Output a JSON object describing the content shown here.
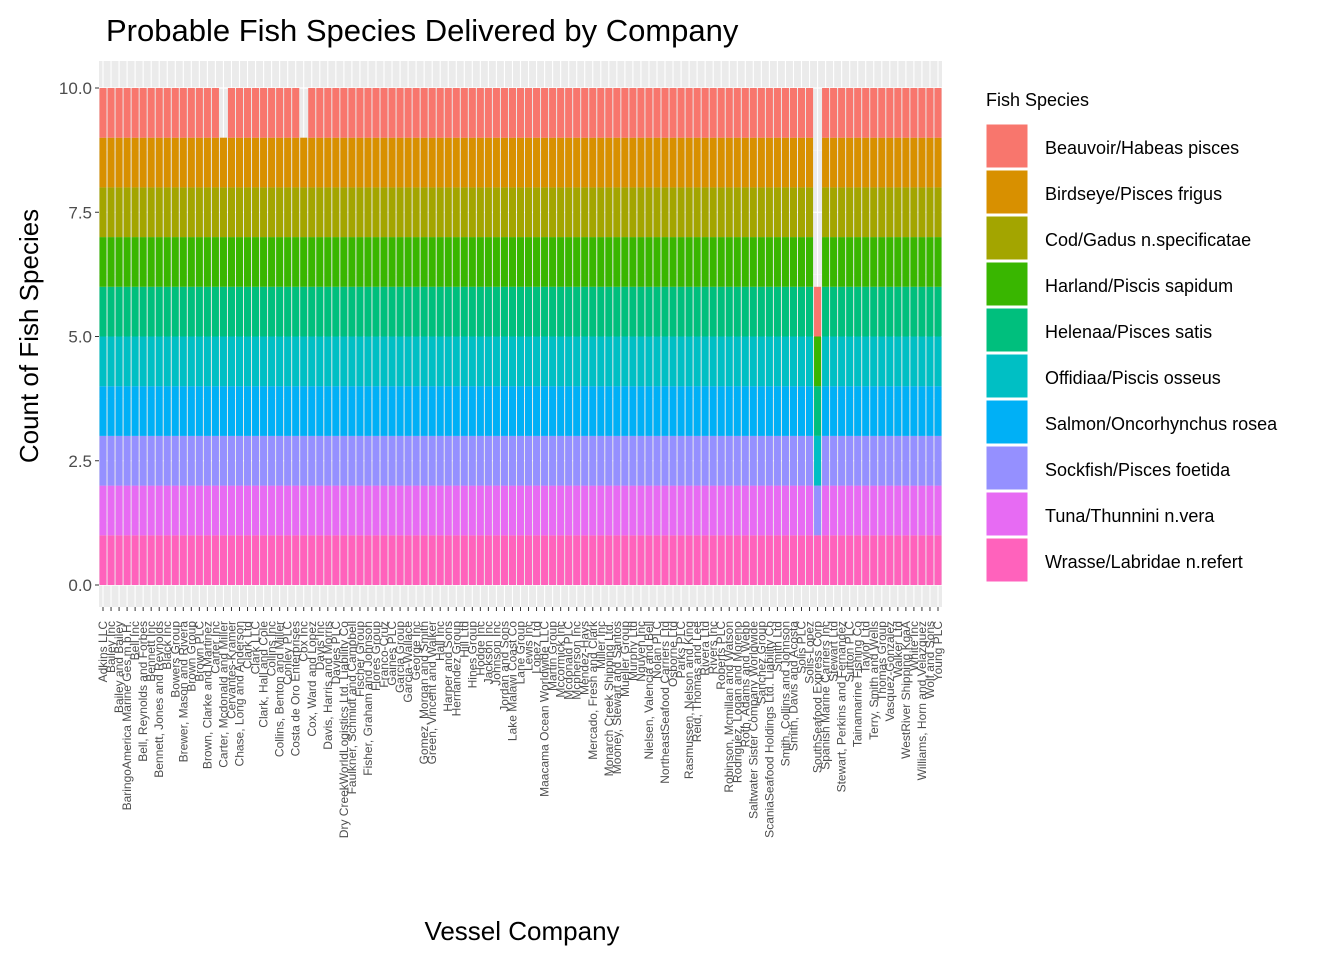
{
  "chart_data": {
    "type": "bar",
    "stacked": true,
    "title": "Probable Fish Species Delivered by Company",
    "xlabel": "Vessel Company",
    "ylabel": "Count of Fish Species",
    "ylim": [
      0,
      10.5
    ],
    "yticks": [
      "0.0",
      "2.5",
      "5.0",
      "7.5",
      "10.0"
    ],
    "ytick_values": [
      0,
      2.5,
      5,
      7.5,
      10
    ],
    "grid": true,
    "legend_position": "right",
    "legend_title": "Fish Species",
    "categories": [
      "Adkins LLC",
      "Bailey Inc",
      "Bailey and Bailey",
      "BaringoAmerica Marine Ges.m.b.H.",
      "Bell Inc",
      "Bell, Reynolds and Forbes",
      "Bennett Inc",
      "Bennett, Jones and Reynolds",
      "Black Inc",
      "Bowers Group",
      "Brewer, Mason and Rivera",
      "Brown Group",
      "Brown PLC",
      "Brown, Clarke and Martinez",
      "Carter Inc",
      "Carter, Mcdonald and Miller",
      "Cervantes-Kramer",
      "Chase, Long and Anderson",
      "Clark Ltd",
      "Clark LLC",
      "Clark, Hall and Cole",
      "Collins Inc",
      "Collins, Benton and Miller",
      "Conley PLC",
      "Costa de Oro Enterprises",
      "Cox Inc",
      "Cox, Ward and Lopez",
      "Davis Inc",
      "Davis, Harris and Morris",
      "Davies PLC",
      "Dry CreekWorldLogistics Ltd. Liability Co",
      "Faulkner, Schmidt and Campbell",
      "Fischer Group",
      "Fisher, Graham and Johnson",
      "Flores Group",
      "Franco-Cruz",
      "Gaines PLC",
      "Garcia Group",
      "Garcia-Wallace",
      "George Inc",
      "Gomez, Morgan and Smith",
      "Green, Vincent and Walker",
      "Hall Inc",
      "Harper and Sons",
      "Hernandez Group",
      "Hill Ltd",
      "Hines Group",
      "Hodge Inc",
      "Jackson Inc",
      "Johnson Inc",
      "Jordan and Sons",
      "Lake Malawi Coast Co",
      "Lane Group",
      "Lewis Inc",
      "Lopez Ltd",
      "Maacama Ocean Worldwide LLC",
      "Martin Group",
      "Mccormick Inc",
      "Mcdonald PLC",
      "Mcpherson Inc",
      "Mendez-Hays",
      "Mercado, Fresh and Clark",
      "Miller Inc",
      "Monarch Creek Shipping Ltd.",
      "Mooney, Stewart and Santos",
      "Mueller Group",
      "Murphy Ltd",
      "Nguyen Inc",
      "Nielsen, Valencia and Bell",
      "Nolan PLC",
      "NortheastSeafood Carriers Ltd",
      "Osborne Ltd",
      "Parks PLC",
      "Rasmussen, Nelson and King",
      "Reid, Thomas and Lee",
      "Rivera Ltd",
      "Rivers Inc",
      "Roberts PLC",
      "Robinson, Mcmillan and Watson",
      "Rodriguez, Logan and Moreno",
      "Roth, Adams and Webb",
      "Saltwater Sister Company Worldwide",
      "Sanchez Group",
      "ScaniaSeafood Holdings Ltd. Liability Co",
      "Smith Ltd",
      "Smith, Collins and Johnson",
      "Smith, Davis and Acosta",
      "Solis PLC",
      "Solis-Lopez",
      "SouthSeafood Express Corp",
      "Spanish Marine Carriers Inc",
      "Stewart Ltd",
      "Stewart, Perkins and Fernandez",
      "Sutton PLC",
      "Tainamarine Fishing Co",
      "Taylor Ltd",
      "Terry, Smith and Wells",
      "Thomas Group",
      "Vasquez-Gonzalez",
      "Walker Ltd",
      "WestRiver Shipping KgaA",
      "White Inc",
      "Williams, Horn and Velazquez",
      "Wolf and Sons",
      "Young PLC"
    ],
    "series": [
      {
        "name": "Beauvoir/Habeas pisces",
        "color": "#F8766D",
        "values": [
          1,
          1,
          1,
          1,
          1,
          1,
          1,
          1,
          1,
          1,
          1,
          1,
          1,
          1,
          1,
          0,
          1,
          1,
          1,
          1,
          1,
          1,
          1,
          1,
          1,
          0,
          1,
          1,
          1,
          1,
          1,
          1,
          1,
          1,
          1,
          1,
          1,
          1,
          1,
          1,
          1,
          1,
          1,
          1,
          1,
          1,
          1,
          1,
          1,
          1,
          1,
          1,
          1,
          1,
          1,
          1,
          1,
          1,
          1,
          1,
          1,
          1,
          1,
          1,
          1,
          1,
          1,
          1,
          1,
          1,
          1,
          1,
          1,
          1,
          1,
          1,
          1,
          1,
          1,
          1,
          1,
          1,
          1,
          1,
          1,
          1,
          1,
          1,
          1,
          1,
          1,
          1,
          1,
          1,
          1,
          1,
          1,
          1,
          1,
          1,
          1,
          1,
          1,
          1,
          1
        ]
      },
      {
        "name": "Birdseye/Pisces frigus",
        "color": "#D89000",
        "values": [
          1,
          1,
          1,
          1,
          1,
          1,
          1,
          1,
          1,
          1,
          1,
          1,
          1,
          1,
          1,
          1,
          1,
          1,
          1,
          1,
          1,
          1,
          1,
          1,
          1,
          1,
          1,
          1,
          1,
          1,
          1,
          1,
          1,
          1,
          1,
          1,
          1,
          1,
          1,
          1,
          1,
          1,
          1,
          1,
          1,
          1,
          1,
          1,
          1,
          1,
          1,
          1,
          1,
          1,
          1,
          1,
          1,
          1,
          1,
          1,
          1,
          1,
          1,
          1,
          1,
          1,
          1,
          1,
          1,
          1,
          1,
          1,
          1,
          1,
          1,
          1,
          1,
          1,
          1,
          1,
          1,
          1,
          1,
          1,
          1,
          1,
          1,
          1,
          1,
          0,
          1,
          1,
          1,
          1,
          1,
          1,
          1,
          1,
          1,
          1,
          1,
          1,
          1,
          1,
          1
        ]
      },
      {
        "name": "Cod/Gadus n.specificatae",
        "color": "#A3A500",
        "values": [
          1,
          1,
          1,
          1,
          1,
          1,
          1,
          1,
          1,
          1,
          1,
          1,
          1,
          1,
          1,
          1,
          1,
          1,
          1,
          1,
          1,
          1,
          1,
          1,
          1,
          1,
          1,
          1,
          1,
          1,
          1,
          1,
          1,
          1,
          1,
          1,
          1,
          1,
          1,
          1,
          1,
          1,
          1,
          1,
          1,
          1,
          1,
          1,
          1,
          1,
          1,
          1,
          1,
          1,
          1,
          1,
          1,
          1,
          1,
          1,
          1,
          1,
          1,
          1,
          1,
          1,
          1,
          1,
          1,
          1,
          1,
          1,
          1,
          1,
          1,
          1,
          1,
          1,
          1,
          1,
          1,
          1,
          1,
          1,
          1,
          1,
          1,
          1,
          1,
          0,
          1,
          1,
          1,
          1,
          1,
          1,
          1,
          1,
          1,
          1,
          1,
          1,
          1,
          1,
          1
        ]
      },
      {
        "name": "Harland/Piscis sapidum",
        "color": "#39B600",
        "values": [
          1,
          1,
          1,
          1,
          1,
          1,
          1,
          1,
          1,
          1,
          1,
          1,
          1,
          1,
          1,
          1,
          1,
          1,
          1,
          1,
          1,
          1,
          1,
          1,
          1,
          1,
          1,
          1,
          1,
          1,
          1,
          1,
          1,
          1,
          1,
          1,
          1,
          1,
          1,
          1,
          1,
          1,
          1,
          1,
          1,
          1,
          1,
          1,
          1,
          1,
          1,
          1,
          1,
          1,
          1,
          1,
          1,
          1,
          1,
          1,
          1,
          1,
          1,
          1,
          1,
          1,
          1,
          1,
          1,
          1,
          1,
          1,
          1,
          1,
          1,
          1,
          1,
          1,
          1,
          1,
          1,
          1,
          1,
          1,
          1,
          1,
          1,
          1,
          1,
          1,
          1,
          1,
          1,
          1,
          1,
          1,
          1,
          1,
          1,
          1,
          1,
          1,
          1,
          1,
          1
        ]
      },
      {
        "name": "Helenaa/Pisces satis",
        "color": "#00BF7D",
        "values": [
          1,
          1,
          1,
          1,
          1,
          1,
          1,
          1,
          1,
          1,
          1,
          1,
          1,
          1,
          1,
          1,
          1,
          1,
          1,
          1,
          1,
          1,
          1,
          1,
          1,
          1,
          1,
          1,
          1,
          1,
          1,
          1,
          1,
          1,
          1,
          1,
          1,
          1,
          1,
          1,
          1,
          1,
          1,
          1,
          1,
          1,
          1,
          1,
          1,
          1,
          1,
          1,
          1,
          1,
          1,
          1,
          1,
          1,
          1,
          1,
          1,
          1,
          1,
          1,
          1,
          1,
          1,
          1,
          1,
          1,
          1,
          1,
          1,
          1,
          1,
          1,
          1,
          1,
          1,
          1,
          1,
          1,
          1,
          1,
          1,
          1,
          1,
          1,
          1,
          1,
          1,
          1,
          1,
          1,
          1,
          1,
          1,
          1,
          1,
          1,
          1,
          1,
          1,
          1,
          1
        ]
      },
      {
        "name": "Offidiaa/Piscis osseus",
        "color": "#00BFC4",
        "values": [
          1,
          1,
          1,
          1,
          1,
          1,
          1,
          1,
          1,
          1,
          1,
          1,
          1,
          1,
          1,
          1,
          1,
          1,
          1,
          1,
          1,
          1,
          1,
          1,
          1,
          1,
          1,
          1,
          1,
          1,
          1,
          1,
          1,
          1,
          1,
          1,
          1,
          1,
          1,
          1,
          1,
          1,
          1,
          1,
          1,
          1,
          1,
          1,
          1,
          1,
          1,
          1,
          1,
          1,
          1,
          1,
          1,
          1,
          1,
          1,
          1,
          1,
          1,
          1,
          1,
          1,
          1,
          1,
          1,
          1,
          1,
          1,
          1,
          1,
          1,
          1,
          1,
          1,
          1,
          1,
          1,
          1,
          1,
          1,
          1,
          1,
          1,
          1,
          1,
          1,
          1,
          1,
          1,
          1,
          1,
          1,
          1,
          1,
          1,
          1,
          1,
          1,
          1,
          1,
          1
        ]
      },
      {
        "name": "Salmon/Oncorhynchus rosea",
        "color": "#00B0F6",
        "values": [
          1,
          1,
          1,
          1,
          1,
          1,
          1,
          1,
          1,
          1,
          1,
          1,
          1,
          1,
          1,
          1,
          1,
          1,
          1,
          1,
          1,
          1,
          1,
          1,
          1,
          1,
          1,
          1,
          1,
          1,
          1,
          1,
          1,
          1,
          1,
          1,
          1,
          1,
          1,
          1,
          1,
          1,
          1,
          1,
          1,
          1,
          1,
          1,
          1,
          1,
          1,
          1,
          1,
          1,
          1,
          1,
          1,
          1,
          1,
          1,
          1,
          1,
          1,
          1,
          1,
          1,
          1,
          1,
          1,
          1,
          1,
          1,
          1,
          1,
          1,
          1,
          1,
          1,
          1,
          1,
          1,
          1,
          1,
          1,
          1,
          1,
          1,
          1,
          1,
          0,
          1,
          1,
          1,
          1,
          1,
          1,
          1,
          1,
          1,
          1,
          1,
          1,
          1,
          1,
          1
        ]
      },
      {
        "name": "Sockfish/Pisces foetida",
        "color": "#9590FF",
        "values": [
          1,
          1,
          1,
          1,
          1,
          1,
          1,
          1,
          1,
          1,
          1,
          1,
          1,
          1,
          1,
          1,
          1,
          1,
          1,
          1,
          1,
          1,
          1,
          1,
          1,
          1,
          1,
          1,
          1,
          1,
          1,
          1,
          1,
          1,
          1,
          1,
          1,
          1,
          1,
          1,
          1,
          1,
          1,
          1,
          1,
          1,
          1,
          1,
          1,
          1,
          1,
          1,
          1,
          1,
          1,
          1,
          1,
          1,
          1,
          1,
          1,
          1,
          1,
          1,
          1,
          1,
          1,
          1,
          1,
          1,
          1,
          1,
          1,
          1,
          1,
          1,
          1,
          1,
          1,
          1,
          1,
          1,
          1,
          1,
          1,
          1,
          1,
          1,
          1,
          1,
          1,
          1,
          1,
          1,
          1,
          1,
          1,
          1,
          1,
          1,
          1,
          1,
          1,
          1,
          1
        ]
      },
      {
        "name": "Tuna/Thunnini n.vera",
        "color": "#E76BF3",
        "values": [
          1,
          1,
          1,
          1,
          1,
          1,
          1,
          1,
          1,
          1,
          1,
          1,
          1,
          1,
          1,
          1,
          1,
          1,
          1,
          1,
          1,
          1,
          1,
          1,
          1,
          1,
          1,
          1,
          1,
          1,
          1,
          1,
          1,
          1,
          1,
          1,
          1,
          1,
          1,
          1,
          1,
          1,
          1,
          1,
          1,
          1,
          1,
          1,
          1,
          1,
          1,
          1,
          1,
          1,
          1,
          1,
          1,
          1,
          1,
          1,
          1,
          1,
          1,
          1,
          1,
          1,
          1,
          1,
          1,
          1,
          1,
          1,
          1,
          1,
          1,
          1,
          1,
          1,
          1,
          1,
          1,
          1,
          1,
          1,
          1,
          1,
          1,
          1,
          1,
          0,
          1,
          1,
          1,
          1,
          1,
          1,
          1,
          1,
          1,
          1,
          1,
          1,
          1,
          1,
          1
        ]
      },
      {
        "name": "Wrasse/Labridae n.refert",
        "color": "#FF62BC",
        "values": [
          1,
          1,
          1,
          1,
          1,
          1,
          1,
          1,
          1,
          1,
          1,
          1,
          1,
          1,
          1,
          1,
          1,
          1,
          1,
          1,
          1,
          1,
          1,
          1,
          1,
          1,
          1,
          1,
          1,
          1,
          1,
          1,
          1,
          1,
          1,
          1,
          1,
          1,
          1,
          1,
          1,
          1,
          1,
          1,
          1,
          1,
          1,
          1,
          1,
          1,
          1,
          1,
          1,
          1,
          1,
          1,
          1,
          1,
          1,
          1,
          1,
          1,
          1,
          1,
          1,
          1,
          1,
          1,
          1,
          1,
          1,
          1,
          1,
          1,
          1,
          1,
          1,
          1,
          1,
          1,
          1,
          1,
          1,
          1,
          1,
          1,
          1,
          1,
          1,
          1,
          1,
          1,
          1,
          1,
          1,
          1,
          1,
          1,
          1,
          1,
          1,
          1,
          1,
          1,
          1
        ]
      }
    ]
  }
}
